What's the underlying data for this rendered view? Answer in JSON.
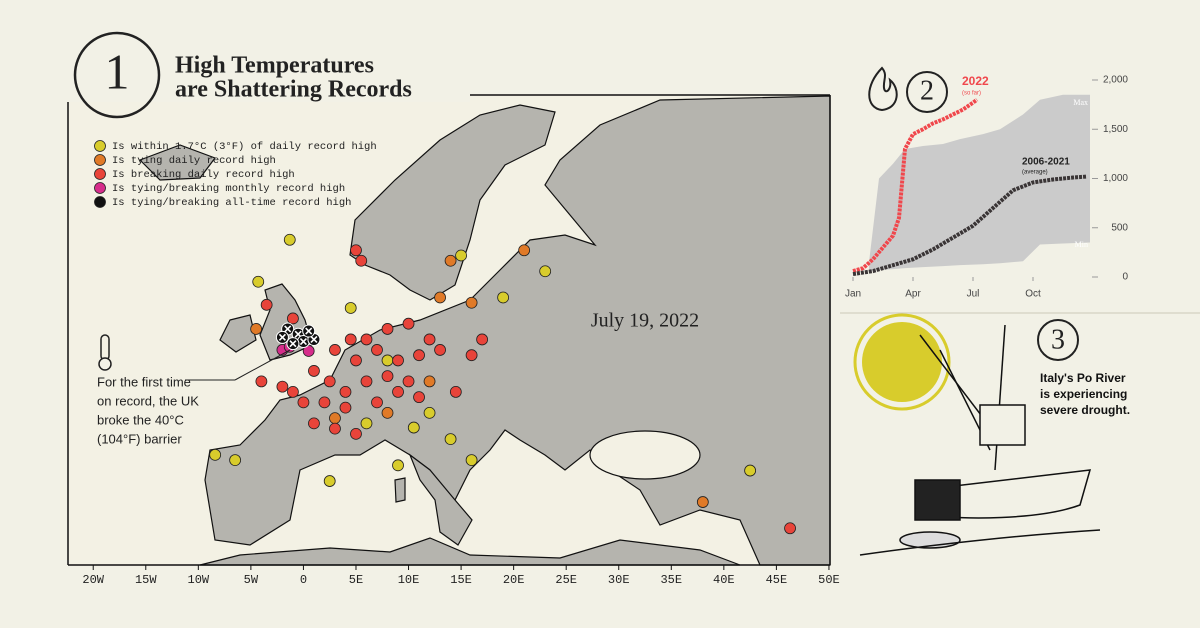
{
  "header": {
    "number": "1",
    "title_line1": "High Temperatures",
    "title_line2": "are Shattering Records"
  },
  "map": {
    "date": "July 19, 2022",
    "xlim": [
      -22.4,
      50.1
    ],
    "ylim": [
      30.5,
      75.3
    ],
    "xticks": [
      {
        "value": -20,
        "label": "20W"
      },
      {
        "value": -15,
        "label": "15W"
      },
      {
        "value": -10,
        "label": "10W"
      },
      {
        "value": -5,
        "label": "5W"
      },
      0,
      {
        "value": 5,
        "label": "5E"
      },
      {
        "value": 10,
        "label": "10E"
      },
      {
        "value": 15,
        "label": "15E"
      },
      {
        "value": 20,
        "label": "20E"
      },
      {
        "value": 25,
        "label": "25E"
      },
      {
        "value": 30,
        "label": "30E"
      },
      {
        "value": 35,
        "label": "35E"
      },
      {
        "value": 40,
        "label": "40E"
      },
      {
        "value": 45,
        "label": "45E"
      },
      {
        "value": 50,
        "label": "50E"
      }
    ],
    "series": [
      {
        "name": "Is within 1.7°C (3°F) of daily record high",
        "color": "#d8cc2c",
        "points": [
          [
            -1.3,
            61.5
          ],
          [
            -4.3,
            57.5
          ],
          [
            -8.4,
            41
          ],
          [
            -6.5,
            40.5
          ],
          [
            2.5,
            38.5
          ],
          [
            9,
            40
          ],
          [
            14,
            42.5
          ],
          [
            16,
            40.5
          ],
          [
            10.5,
            43.6
          ],
          [
            12,
            45
          ],
          [
            19,
            56
          ],
          [
            23,
            58.5
          ],
          [
            15,
            60
          ],
          [
            8,
            50
          ],
          [
            6,
            44
          ],
          [
            42.5,
            39.5
          ],
          [
            4.5,
            55
          ]
        ]
      },
      {
        "name": "Is tying daily record high",
        "color": "#e07a28",
        "points": [
          [
            -4.5,
            53
          ],
          [
            14,
            59.5
          ],
          [
            13,
            56
          ],
          [
            21,
            60.5
          ],
          [
            38,
            36.5
          ],
          [
            12,
            48
          ],
          [
            8,
            45
          ],
          [
            16,
            55.5
          ],
          [
            3,
            44.5
          ]
        ]
      },
      {
        "name": "Is breaking daily record high",
        "color": "#e8443a",
        "points": [
          [
            -3.5,
            55.3
          ],
          [
            -1,
            54
          ],
          [
            5,
            60.5
          ],
          [
            5.5,
            59.5
          ],
          [
            3,
            51
          ],
          [
            4.5,
            52
          ],
          [
            6,
            52
          ],
          [
            8,
            53
          ],
          [
            10,
            53.5
          ],
          [
            12,
            52
          ],
          [
            7,
            51
          ],
          [
            5,
            50
          ],
          [
            9,
            50
          ],
          [
            11,
            50.5
          ],
          [
            13,
            51
          ],
          [
            1,
            49
          ],
          [
            2.5,
            48
          ],
          [
            4,
            47
          ],
          [
            6,
            48
          ],
          [
            8,
            48.5
          ],
          [
            10,
            48
          ],
          [
            -1,
            47
          ],
          [
            0,
            46
          ],
          [
            2,
            46
          ],
          [
            4,
            45.5
          ],
          [
            1,
            44
          ],
          [
            3,
            43.5
          ],
          [
            5,
            43
          ],
          [
            7,
            46
          ],
          [
            9,
            47
          ],
          [
            11,
            46.5
          ],
          [
            14.5,
            47
          ],
          [
            17,
            52
          ],
          [
            16,
            50.5
          ],
          [
            -2,
            47.5
          ],
          [
            -4,
            48
          ],
          [
            46.3,
            34
          ]
        ]
      },
      {
        "name": "Is tying/breaking monthly record high",
        "color": "#d62d8b",
        "points": [
          [
            -2,
            51
          ],
          [
            -1.3,
            51.3
          ],
          [
            0.5,
            50.9
          ]
        ]
      },
      {
        "name": "Is tying/breaking all-time record high",
        "color": "#111111",
        "points": [
          [
            -1.5,
            53
          ],
          [
            -0.5,
            52.5
          ],
          [
            0,
            51.8
          ],
          [
            -1,
            51.6
          ],
          [
            1,
            52
          ],
          [
            -2,
            52.2
          ],
          [
            0.5,
            52.8
          ]
        ]
      }
    ]
  },
  "annotation": [
    "For the first time",
    "on record, the UK",
    "broke the 40°C",
    "(104°F) barrier"
  ],
  "section2": {
    "number": "2"
  },
  "chart_data": {
    "type": "line",
    "xlim": [
      -0.4,
      11.85
    ],
    "ylim": [
      0,
      2000
    ],
    "xticks": [
      {
        "value": 0,
        "label": "Jan"
      },
      {
        "value": 3,
        "label": "Apr"
      },
      {
        "value": 6,
        "label": "Jul"
      },
      {
        "value": 9,
        "label": "Oct"
      }
    ],
    "yticks": [
      0,
      500,
      {
        "value": 1000,
        "label": "1,000"
      },
      {
        "value": 1500,
        "label": "1,500"
      },
      {
        "value": 2000,
        "label": "2,000"
      }
    ],
    "band": {
      "color": "#cbcbcb",
      "max_label": "Max",
      "min_label": "Min",
      "x": [
        0.8,
        1.3,
        2,
        2.6,
        3.5,
        4.5,
        5.35,
        6.5,
        7.35,
        8.5,
        9.35,
        10.5,
        11.85
      ],
      "max": [
        150,
        1000,
        1150,
        1300,
        1330,
        1350,
        1400,
        1450,
        1500,
        1650,
        1800,
        1850,
        1850
      ],
      "min": [
        60,
        70,
        80,
        90,
        100,
        110,
        120,
        130,
        140,
        160,
        330,
        340,
        350
      ]
    },
    "series": [
      {
        "name": "2022",
        "note": "(so far)",
        "color": "#f0474c",
        "x": [
          0,
          0.5,
          1,
          1.5,
          2,
          2.3,
          2.6,
          3,
          3.5,
          4,
          4.5,
          5,
          5.5,
          6,
          6.2
        ],
        "values": [
          60,
          90,
          180,
          300,
          420,
          600,
          1300,
          1450,
          1500,
          1560,
          1600,
          1650,
          1700,
          1770,
          1800
        ]
      },
      {
        "name": "2006-2021",
        "note": "(average)",
        "color": "#3a3536",
        "x": [
          0,
          1,
          2,
          3,
          4,
          5,
          6,
          7,
          8,
          9,
          10,
          11,
          11.7
        ],
        "values": [
          30,
          60,
          120,
          180,
          280,
          400,
          520,
          700,
          880,
          960,
          990,
          1010,
          1020
        ]
      }
    ]
  },
  "section3": {
    "number": "3",
    "lines": [
      "Italy's Po River",
      "is experiencing",
      "severe drought."
    ]
  }
}
